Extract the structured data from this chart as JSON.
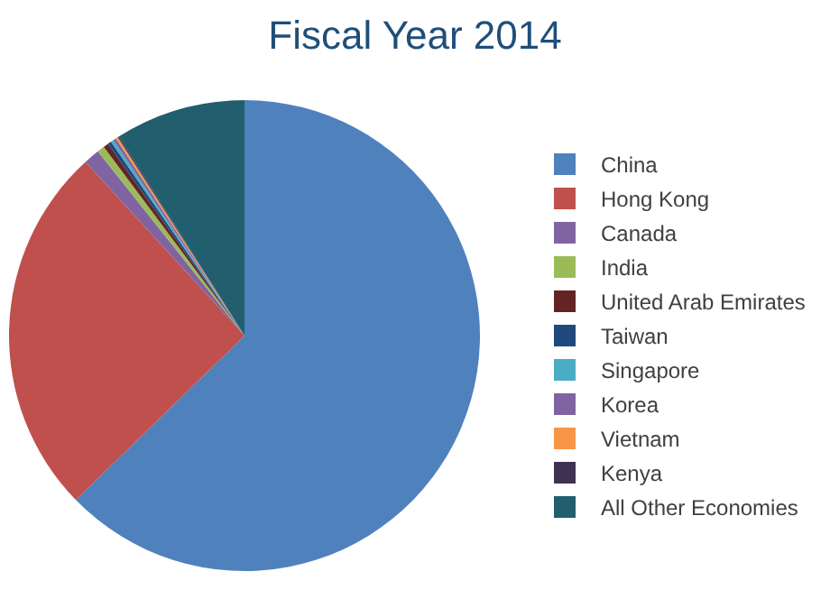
{
  "chart_data": {
    "type": "pie",
    "title": "Fiscal Year 2014",
    "categories": [
      "China",
      "Hong Kong",
      "Canada",
      "India",
      "United Arab Emirates",
      "Taiwan",
      "Singapore",
      "Korea",
      "Vietnam",
      "Kenya",
      "All Other Economies"
    ],
    "values": [
      62.7,
      25.5,
      1.1,
      0.5,
      0.35,
      0.25,
      0.2,
      0.2,
      0.15,
      0.1,
      8.95
    ],
    "colors": [
      "#4f81bd",
      "#c0504d",
      "#8064a2",
      "#9bbb59",
      "#632523",
      "#1f497d",
      "#4bacc6",
      "#8064a2",
      "#f79646",
      "#3f3151",
      "#215e6e"
    ],
    "legend": "right"
  }
}
